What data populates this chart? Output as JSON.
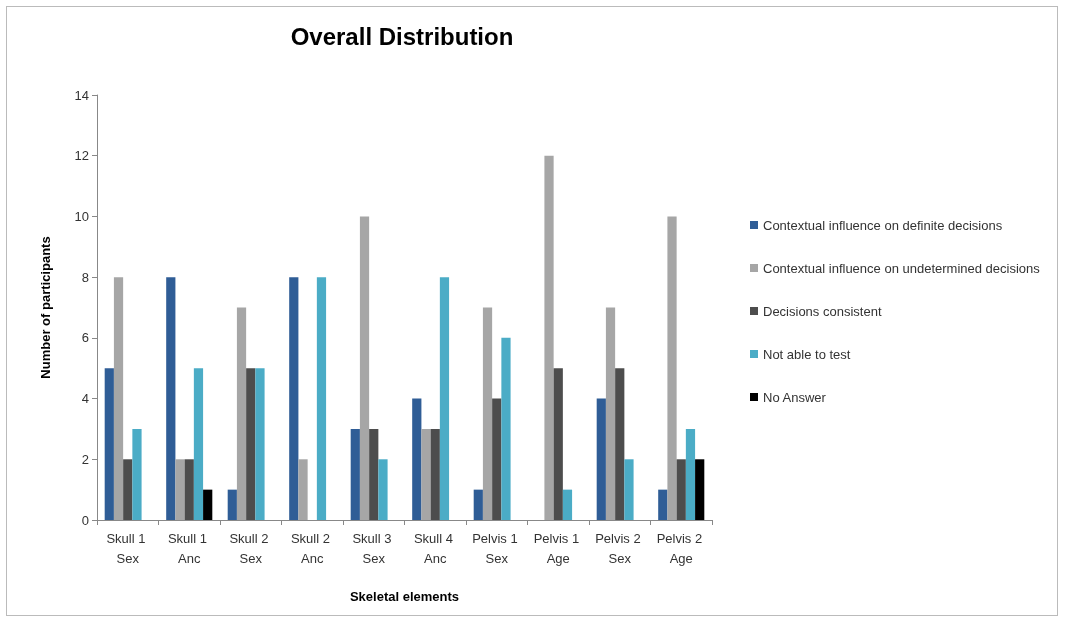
{
  "chart_data": {
    "type": "bar",
    "title": "Overall Distribution",
    "xlabel": "Skeletal elements",
    "ylabel": "Number of participants",
    "categories": [
      "Skull 1 Sex",
      "Skull 1 Anc",
      "Skull 2 Sex",
      "Skull 2 Anc",
      "Skull 3 Sex",
      "Skull 4 Anc",
      "Pelvis 1 Sex",
      "Pelvis 1 Age",
      "Pelvis 2 Sex",
      "Pelvis 2 Age"
    ],
    "series": [
      {
        "name": "Contextual influence on definite decisions",
        "color": "#2f5d96",
        "values": [
          5,
          8,
          1,
          8,
          3,
          4,
          1,
          0,
          4,
          1
        ]
      },
      {
        "name": "Contextual influence on undetermined decisions",
        "color": "#a6a6a6",
        "values": [
          8,
          2,
          7,
          2,
          10,
          3,
          7,
          12,
          7,
          10
        ]
      },
      {
        "name": "Decisions consistent",
        "color": "#4d4d4d",
        "values": [
          2,
          2,
          5,
          0,
          3,
          3,
          4,
          5,
          5,
          2
        ]
      },
      {
        "name": "Not able to test",
        "color": "#4bacc6",
        "values": [
          3,
          5,
          5,
          8,
          2,
          8,
          6,
          1,
          2,
          3
        ]
      },
      {
        "name": "No Answer",
        "color": "#000000",
        "values": [
          0,
          1,
          0,
          0,
          0,
          0,
          0,
          0,
          0,
          2
        ]
      }
    ],
    "ylim": [
      0,
      14
    ],
    "yticks": [
      0,
      2,
      4,
      6,
      8,
      10,
      12,
      14
    ],
    "grid": false,
    "legend": "right"
  }
}
